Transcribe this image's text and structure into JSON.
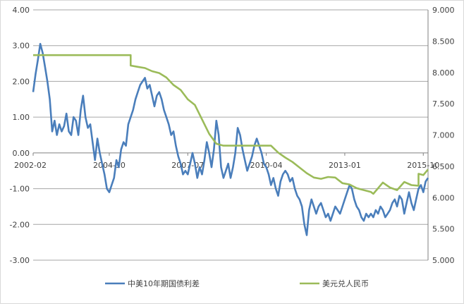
{
  "chart_data": {
    "type": "line",
    "x_tick_labels": [
      "2002-02",
      "2004-10",
      "2007-07",
      "2010-04",
      "2013-01",
      "2015-10"
    ],
    "x_range": [
      "2002-02",
      "2015-12"
    ],
    "y_left": {
      "ylim": [
        -3.0,
        4.0
      ],
      "ticks": [
        "4.00",
        "3.00",
        "2.00",
        "1.00",
        "0.00",
        "-1.00",
        "-2.00",
        "-3.00"
      ]
    },
    "y_right": {
      "ylim": [
        5.0,
        9.0
      ],
      "ticks": [
        "9.000",
        "8.500",
        "8.000",
        "7.500",
        "7.000",
        "6.500",
        "6.000",
        "5.500",
        "5.000"
      ]
    },
    "grid": true,
    "legend_position": "bottom",
    "series": [
      {
        "name": "中美10年期国债利差",
        "axis": "left",
        "color": "#4a7ebb",
        "points": [
          [
            "2002-02",
            1.7
          ],
          [
            "2002-03",
            2.2
          ],
          [
            "2002-04",
            2.6
          ],
          [
            "2002-05",
            3.05
          ],
          [
            "2002-06",
            2.8
          ],
          [
            "2002-07",
            2.4
          ],
          [
            "2002-08",
            2.0
          ],
          [
            "2002-09",
            1.5
          ],
          [
            "2002-10",
            0.6
          ],
          [
            "2002-11",
            0.9
          ],
          [
            "2002-12",
            0.5
          ],
          [
            "2003-01",
            0.8
          ],
          [
            "2003-02",
            0.6
          ],
          [
            "2003-03",
            0.75
          ],
          [
            "2003-04",
            1.1
          ],
          [
            "2003-05",
            0.6
          ],
          [
            "2003-06",
            0.5
          ],
          [
            "2003-07",
            1.0
          ],
          [
            "2003-08",
            0.9
          ],
          [
            "2003-09",
            0.5
          ],
          [
            "2003-10",
            1.2
          ],
          [
            "2003-11",
            1.6
          ],
          [
            "2003-12",
            1.0
          ],
          [
            "2004-01",
            0.7
          ],
          [
            "2004-02",
            0.8
          ],
          [
            "2004-03",
            0.3
          ],
          [
            "2004-04",
            -0.2
          ],
          [
            "2004-05",
            0.4
          ],
          [
            "2004-06",
            0.0
          ],
          [
            "2004-07",
            -0.3
          ],
          [
            "2004-08",
            -0.6
          ],
          [
            "2004-09",
            -1.0
          ],
          [
            "2004-10",
            -1.1
          ],
          [
            "2004-11",
            -0.9
          ],
          [
            "2004-12",
            -0.7
          ],
          [
            "2005-01",
            -0.2
          ],
          [
            "2005-02",
            -0.4
          ],
          [
            "2005-03",
            0.1
          ],
          [
            "2005-04",
            0.3
          ],
          [
            "2005-05",
            0.2
          ],
          [
            "2005-06",
            0.8
          ],
          [
            "2005-07",
            1.0
          ],
          [
            "2005-08",
            1.2
          ],
          [
            "2005-09",
            1.5
          ],
          [
            "2005-10",
            1.7
          ],
          [
            "2005-11",
            1.9
          ],
          [
            "2005-12",
            2.0
          ],
          [
            "2006-01",
            2.1
          ],
          [
            "2006-02",
            1.8
          ],
          [
            "2006-03",
            1.9
          ],
          [
            "2006-04",
            1.6
          ],
          [
            "2006-05",
            1.3
          ],
          [
            "2006-06",
            1.6
          ],
          [
            "2006-07",
            1.7
          ],
          [
            "2006-08",
            1.5
          ],
          [
            "2006-09",
            1.2
          ],
          [
            "2006-10",
            1.0
          ],
          [
            "2006-11",
            0.8
          ],
          [
            "2006-12",
            0.5
          ],
          [
            "2007-01",
            0.6
          ],
          [
            "2007-02",
            0.2
          ],
          [
            "2007-03",
            -0.1
          ],
          [
            "2007-04",
            -0.3
          ],
          [
            "2007-05",
            -0.6
          ],
          [
            "2007-06",
            -0.5
          ],
          [
            "2007-07",
            -0.6
          ],
          [
            "2007-08",
            -0.3
          ],
          [
            "2007-09",
            0.0
          ],
          [
            "2007-10",
            -0.3
          ],
          [
            "2007-11",
            -0.7
          ],
          [
            "2007-12",
            -0.4
          ],
          [
            "2008-01",
            -0.6
          ],
          [
            "2008-02",
            -0.2
          ],
          [
            "2008-03",
            0.3
          ],
          [
            "2008-04",
            0.0
          ],
          [
            "2008-05",
            -0.4
          ],
          [
            "2008-06",
            0.1
          ],
          [
            "2008-07",
            0.9
          ],
          [
            "2008-08",
            0.5
          ],
          [
            "2008-09",
            -0.4
          ],
          [
            "2008-10",
            -0.7
          ],
          [
            "2008-11",
            -0.5
          ],
          [
            "2008-12",
            -0.3
          ],
          [
            "2009-01",
            -0.7
          ],
          [
            "2009-02",
            -0.4
          ],
          [
            "2009-03",
            0.0
          ],
          [
            "2009-04",
            0.7
          ],
          [
            "2009-05",
            0.5
          ],
          [
            "2009-06",
            0.1
          ],
          [
            "2009-07",
            -0.2
          ],
          [
            "2009-08",
            -0.5
          ],
          [
            "2009-09",
            -0.3
          ],
          [
            "2009-10",
            -0.1
          ],
          [
            "2009-11",
            0.2
          ],
          [
            "2009-12",
            0.4
          ],
          [
            "2010-01",
            0.2
          ],
          [
            "2010-02",
            0.0
          ],
          [
            "2010-03",
            -0.3
          ],
          [
            "2010-04",
            -0.4
          ],
          [
            "2010-05",
            -0.6
          ],
          [
            "2010-06",
            -0.9
          ],
          [
            "2010-07",
            -0.7
          ],
          [
            "2010-08",
            -1.0
          ],
          [
            "2010-09",
            -1.2
          ],
          [
            "2010-10",
            -0.8
          ],
          [
            "2010-11",
            -0.6
          ],
          [
            "2010-12",
            -0.5
          ],
          [
            "2011-01",
            -0.6
          ],
          [
            "2011-02",
            -0.8
          ],
          [
            "2011-03",
            -0.7
          ],
          [
            "2011-04",
            -1.0
          ],
          [
            "2011-05",
            -1.2
          ],
          [
            "2011-06",
            -1.3
          ],
          [
            "2011-07",
            -1.5
          ],
          [
            "2011-08",
            -2.0
          ],
          [
            "2011-09",
            -2.3
          ],
          [
            "2011-10",
            -1.6
          ],
          [
            "2011-11",
            -1.3
          ],
          [
            "2011-12",
            -1.5
          ],
          [
            "2012-01",
            -1.7
          ],
          [
            "2012-02",
            -1.5
          ],
          [
            "2012-03",
            -1.4
          ],
          [
            "2012-04",
            -1.6
          ],
          [
            "2012-05",
            -1.8
          ],
          [
            "2012-06",
            -1.7
          ],
          [
            "2012-07",
            -1.9
          ],
          [
            "2012-08",
            -1.7
          ],
          [
            "2012-09",
            -1.5
          ],
          [
            "2012-10",
            -1.6
          ],
          [
            "2012-11",
            -1.7
          ],
          [
            "2012-12",
            -1.5
          ],
          [
            "2013-01",
            -1.3
          ],
          [
            "2013-02",
            -1.1
          ],
          [
            "2013-03",
            -0.9
          ],
          [
            "2013-04",
            -1.0
          ],
          [
            "2013-05",
            -1.3
          ],
          [
            "2013-06",
            -1.5
          ],
          [
            "2013-07",
            -1.6
          ],
          [
            "2013-08",
            -1.8
          ],
          [
            "2013-09",
            -1.9
          ],
          [
            "2013-10",
            -1.7
          ],
          [
            "2013-11",
            -1.8
          ],
          [
            "2013-12",
            -1.7
          ],
          [
            "2014-01",
            -1.8
          ],
          [
            "2014-02",
            -1.6
          ],
          [
            "2014-03",
            -1.7
          ],
          [
            "2014-04",
            -1.5
          ],
          [
            "2014-05",
            -1.6
          ],
          [
            "2014-06",
            -1.8
          ],
          [
            "2014-07",
            -1.7
          ],
          [
            "2014-08",
            -1.6
          ],
          [
            "2014-09",
            -1.4
          ],
          [
            "2014-10",
            -1.3
          ],
          [
            "2014-11",
            -1.5
          ],
          [
            "2014-12",
            -1.2
          ],
          [
            "2015-01",
            -1.3
          ],
          [
            "2015-02",
            -1.7
          ],
          [
            "2015-03",
            -1.4
          ],
          [
            "2015-04",
            -1.1
          ],
          [
            "2015-05",
            -1.4
          ],
          [
            "2015-06",
            -1.6
          ],
          [
            "2015-07",
            -1.3
          ],
          [
            "2015-08",
            -1.0
          ],
          [
            "2015-09",
            -0.9
          ],
          [
            "2015-10",
            -1.1
          ],
          [
            "2015-11",
            -0.8
          ],
          [
            "2015-12",
            -0.7
          ]
        ]
      },
      {
        "name": "美元兑人民币",
        "axis": "right",
        "color": "#9bbb59",
        "points": [
          [
            "2002-02",
            8.277
          ],
          [
            "2005-07",
            8.277
          ],
          [
            "2005-07",
            8.11
          ],
          [
            "2005-10",
            8.09
          ],
          [
            "2006-01",
            8.07
          ],
          [
            "2006-04",
            8.02
          ],
          [
            "2006-07",
            7.99
          ],
          [
            "2006-10",
            7.92
          ],
          [
            "2007-01",
            7.8
          ],
          [
            "2007-04",
            7.72
          ],
          [
            "2007-07",
            7.57
          ],
          [
            "2007-10",
            7.48
          ],
          [
            "2008-01",
            7.25
          ],
          [
            "2008-04",
            7.02
          ],
          [
            "2008-07",
            6.86
          ],
          [
            "2008-10",
            6.83
          ],
          [
            "2009-06",
            6.83
          ],
          [
            "2010-01",
            6.83
          ],
          [
            "2010-06",
            6.83
          ],
          [
            "2010-09",
            6.72
          ],
          [
            "2010-12",
            6.64
          ],
          [
            "2011-03",
            6.57
          ],
          [
            "2011-06",
            6.48
          ],
          [
            "2011-09",
            6.39
          ],
          [
            "2011-12",
            6.32
          ],
          [
            "2012-03",
            6.3
          ],
          [
            "2012-06",
            6.33
          ],
          [
            "2012-09",
            6.32
          ],
          [
            "2012-12",
            6.23
          ],
          [
            "2013-03",
            6.21
          ],
          [
            "2013-06",
            6.15
          ],
          [
            "2013-09",
            6.12
          ],
          [
            "2013-12",
            6.09
          ],
          [
            "2014-01",
            6.06
          ],
          [
            "2014-03",
            6.15
          ],
          [
            "2014-05",
            6.24
          ],
          [
            "2014-08",
            6.16
          ],
          [
            "2014-11",
            6.12
          ],
          [
            "2015-02",
            6.25
          ],
          [
            "2015-05",
            6.2
          ],
          [
            "2015-08",
            6.19
          ],
          [
            "2015-08",
            6.38
          ],
          [
            "2015-10",
            6.36
          ],
          [
            "2015-12",
            6.45
          ]
        ]
      }
    ]
  }
}
